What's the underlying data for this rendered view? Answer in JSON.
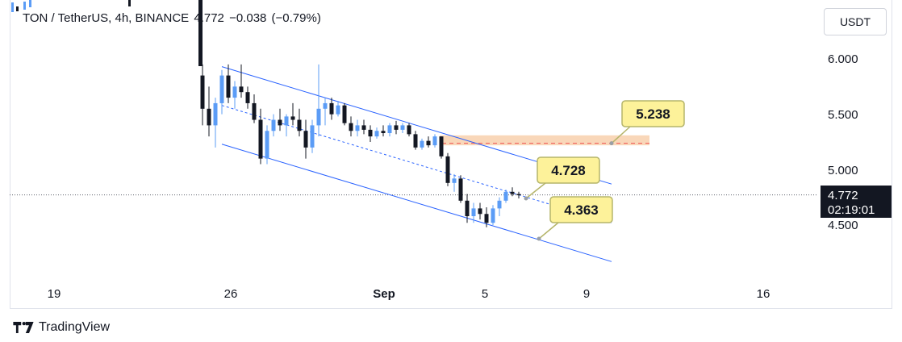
{
  "header": {
    "symbol": "TON / TetherUS, 4h, BINANCE",
    "last": "4.772",
    "change": "−0.038",
    "change_pct": "(−0.79%)"
  },
  "currency_button": "USDT",
  "footer": {
    "brand": "TradingView",
    "logo_icon": "tradingview-logo-icon"
  },
  "colors": {
    "up": "#5b9cf6",
    "down": "#131722",
    "channel": "#2962ff",
    "zone": "#f7c9a2",
    "callout": "#fdf29a",
    "callout_border": "#b5b56b"
  },
  "chart_data": {
    "type": "candlestick",
    "symbol": "TON / TetherUS",
    "interval": "4h",
    "exchange": "BINANCE",
    "y_ticks": [
      "6.000",
      "5.500",
      "5.000",
      "4.500"
    ],
    "x_ticks": [
      "19",
      "26",
      "Sep",
      "5",
      "9",
      "16"
    ],
    "last_price": "4.772",
    "countdown": "02:19:01",
    "ylim": [
      4.0,
      6.5
    ],
    "channel": {
      "upper": [
        [
          5.9,
          4.85
        ]
      ],
      "lower": [
        [
          5.25,
          4.25
        ]
      ]
    },
    "resistance_zone": {
      "low": 5.22,
      "high": 5.31
    },
    "annotations": [
      {
        "label": "5.238",
        "value": 5.238
      },
      {
        "label": "4.728",
        "value": 4.728
      },
      {
        "label": "4.363",
        "value": 4.363
      }
    ],
    "candles": [
      [
        5.85,
        5.95,
        5.4,
        5.55
      ],
      [
        5.55,
        5.75,
        5.3,
        5.4
      ],
      [
        5.4,
        5.65,
        5.2,
        5.6
      ],
      [
        5.6,
        5.9,
        5.5,
        5.85
      ],
      [
        5.85,
        5.95,
        5.6,
        5.65
      ],
      [
        5.65,
        5.8,
        5.55,
        5.75
      ],
      [
        5.75,
        5.95,
        5.65,
        5.7
      ],
      [
        5.7,
        5.75,
        5.55,
        5.6
      ],
      [
        5.6,
        5.68,
        5.42,
        5.45
      ],
      [
        5.45,
        5.55,
        5.05,
        5.1
      ],
      [
        5.1,
        5.4,
        5.05,
        5.35
      ],
      [
        5.35,
        5.5,
        5.3,
        5.45
      ],
      [
        5.45,
        5.55,
        5.35,
        5.4
      ],
      [
        5.4,
        5.5,
        5.3,
        5.48
      ],
      [
        5.48,
        5.6,
        5.4,
        5.45
      ],
      [
        5.45,
        5.55,
        5.3,
        5.35
      ],
      [
        5.35,
        5.45,
        5.1,
        5.2
      ],
      [
        5.2,
        5.45,
        5.15,
        5.4
      ],
      [
        5.4,
        5.95,
        5.3,
        5.55
      ],
      [
        5.55,
        5.65,
        5.4,
        5.6
      ],
      [
        5.6,
        5.65,
        5.45,
        5.5
      ],
      [
        5.5,
        5.62,
        5.48,
        5.58
      ],
      [
        5.58,
        5.6,
        5.4,
        5.42
      ],
      [
        5.42,
        5.48,
        5.3,
        5.35
      ],
      [
        5.35,
        5.45,
        5.3,
        5.4
      ],
      [
        5.4,
        5.45,
        5.32,
        5.36
      ],
      [
        5.36,
        5.4,
        5.25,
        5.3
      ],
      [
        5.3,
        5.38,
        5.28,
        5.35
      ],
      [
        5.35,
        5.4,
        5.3,
        5.33
      ],
      [
        5.33,
        5.42,
        5.3,
        5.4
      ],
      [
        5.4,
        5.44,
        5.32,
        5.36
      ],
      [
        5.36,
        5.42,
        5.33,
        5.4
      ],
      [
        5.4,
        5.42,
        5.3,
        5.32
      ],
      [
        5.32,
        5.35,
        5.18,
        5.2
      ],
      [
        5.2,
        5.28,
        5.18,
        5.26
      ],
      [
        5.26,
        5.3,
        5.2,
        5.22
      ],
      [
        5.22,
        5.32,
        5.2,
        5.3
      ],
      [
        5.3,
        5.3,
        5.1,
        5.12
      ],
      [
        5.12,
        5.15,
        4.85,
        4.88
      ],
      [
        4.88,
        4.96,
        4.8,
        4.92
      ],
      [
        4.92,
        4.95,
        4.7,
        4.72
      ],
      [
        4.72,
        4.78,
        4.52,
        4.58
      ],
      [
        4.58,
        4.7,
        4.52,
        4.65
      ],
      [
        4.65,
        4.7,
        4.55,
        4.6
      ],
      [
        4.6,
        4.66,
        4.48,
        4.52
      ],
      [
        4.52,
        4.68,
        4.5,
        4.65
      ],
      [
        4.65,
        4.75,
        4.58,
        4.72
      ],
      [
        4.72,
        4.82,
        4.7,
        4.8
      ],
      [
        4.8,
        4.84,
        4.76,
        4.78
      ],
      [
        4.78,
        4.8,
        4.74,
        4.77
      ]
    ]
  }
}
